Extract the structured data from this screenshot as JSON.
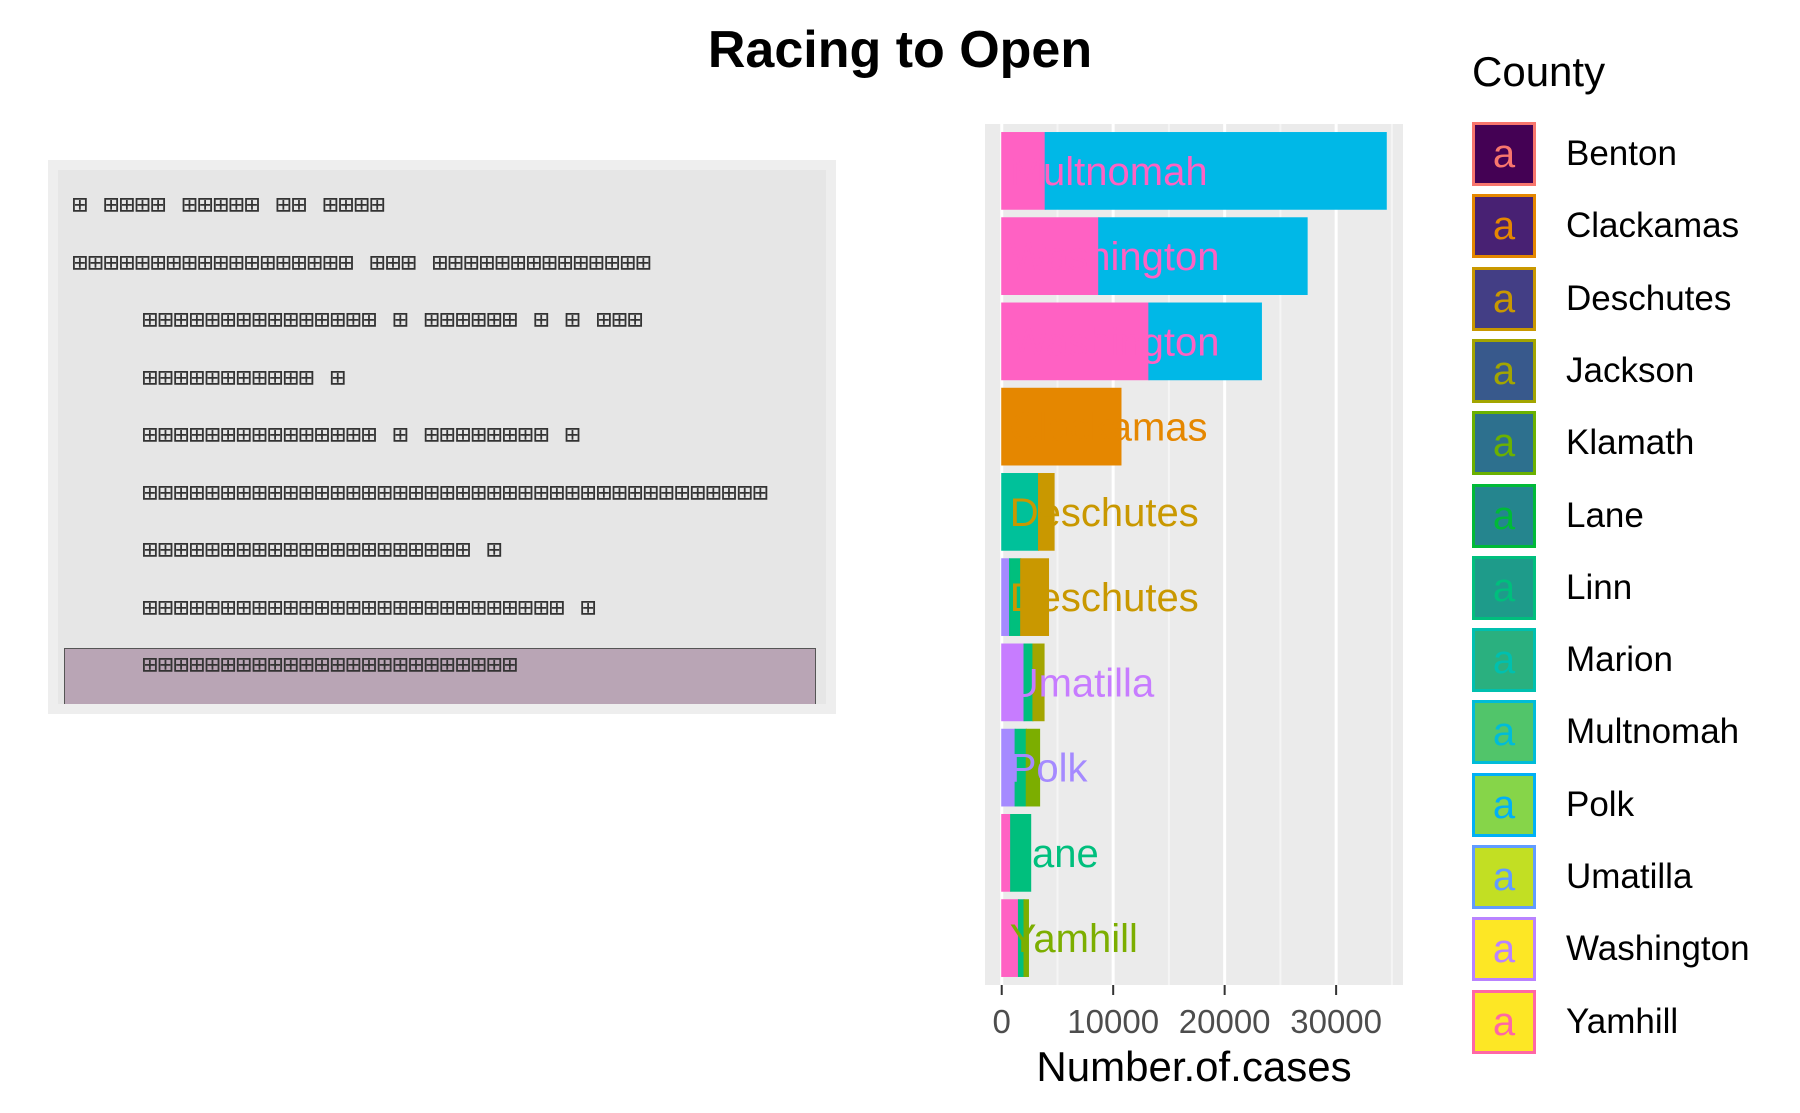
{
  "title": "Racing to Open",
  "code_panel": {
    "lines": [
      {
        "text": "⊞ ⊞⊞⊞⊞ ⊞⊞⊞⊞⊞ ⊞⊞ ⊞⊞⊞⊞",
        "indent": 0
      },
      {
        "text": "⊞⊞⊞⊞⊞⊞⊞⊞⊞⊞⊞⊞⊞⊞⊞⊞⊞⊞ ⊞⊞⊞ ⊞⊞⊞⊞⊞⊞⊞⊞⊞⊞⊞⊞⊞⊞",
        "indent": 0
      },
      {
        "text": "⊞⊞⊞⊞⊞⊞⊞⊞⊞⊞⊞⊞⊞⊞⊞ ⊞ ⊞⊞⊞⊞⊞⊞ ⊞ ⊞ ⊞⊞⊞",
        "indent": 1
      },
      {
        "text": "⊞⊞⊞⊞⊞⊞⊞⊞⊞⊞⊞ ⊞",
        "indent": 1
      },
      {
        "text": "⊞⊞⊞⊞⊞⊞⊞⊞⊞⊞⊞⊞⊞⊞⊞ ⊞ ⊞⊞⊞⊞⊞⊞⊞⊞ ⊞",
        "indent": 1
      },
      {
        "text": "⊞⊞⊞⊞⊞⊞⊞⊞⊞⊞⊞⊞⊞⊞⊞⊞⊞⊞⊞⊞⊞⊞⊞⊞⊞⊞⊞⊞⊞⊞⊞⊞⊞⊞⊞⊞⊞⊞⊞⊞",
        "indent": 1
      },
      {
        "text": "⊞⊞⊞⊞⊞⊞⊞⊞⊞⊞⊞⊞⊞⊞⊞⊞⊞⊞⊞⊞⊞ ⊞",
        "indent": 1
      },
      {
        "text": "⊞⊞⊞⊞⊞⊞⊞⊞⊞⊞⊞⊞⊞⊞⊞⊞⊞⊞⊞⊞⊞⊞⊞⊞⊞⊞⊞ ⊞",
        "indent": 1
      },
      {
        "text": "⊞⊞⊞⊞⊞⊞⊞⊞⊞⊞⊞⊞⊞⊞⊞⊞⊞⊞⊞⊞⊞⊞⊞⊞",
        "indent": 1
      }
    ]
  },
  "chart_data": {
    "type": "bar",
    "orientation": "horizontal",
    "title": "Racing to Open",
    "xlabel": "Number.of.cases",
    "ylabel": "",
    "xlim": [
      -1500,
      36000
    ],
    "x_ticks": [
      0,
      10000,
      20000,
      30000
    ],
    "x_tick_labels": [
      "0",
      "10000",
      "20000",
      "30000"
    ],
    "grid": true,
    "legend_title": "County",
    "legend_position": "right",
    "categories": [
      "Benton",
      "Clackamas",
      "Deschutes",
      "Jackson",
      "Klamath",
      "Lane",
      "Linn",
      "Marion",
      "Multnomah",
      "Polk",
      "Umatilla",
      "Washington",
      "Yamhill"
    ],
    "colors": [
      "#440154",
      "#481a6c",
      "#472f7d",
      "#414487",
      "#39568c",
      "#31688e",
      "#2a788e",
      "#23888e",
      "#1f988b",
      "#22a884",
      "#35b779",
      "#54c568",
      "#fde725"
    ],
    "outline_colors": [
      "#f8766d",
      "#e58700",
      "#c99800",
      "#a3a500",
      "#6bb100",
      "#00ba38",
      "#00bf7d",
      "#00c0af",
      "#00bcd8",
      "#00b0f6",
      "#619cff",
      "#b983ff",
      "#e76bf3"
    ],
    "legend_fill_colors": [
      "#440154",
      "#482173",
      "#433e85",
      "#38598c",
      "#2d708e",
      "#25858e",
      "#1e9b8a",
      "#2ab07f",
      "#51c56a",
      "#86d549",
      "#c2df23",
      "#fde725",
      "#fde725"
    ],
    "legend_outline_colors": [
      "#f8766d",
      "#e58700",
      "#c99800",
      "#a3a500",
      "#6bb100",
      "#00ba38",
      "#00bf7d",
      "#00c0af",
      "#00bcd8",
      "#00b0f6",
      "#619cff",
      "#b983ff",
      "#ff67a4"
    ],
    "legend_letter": "a",
    "bars": [
      {
        "max": 34500,
        "label": "Multnomah",
        "label_color": "#ff61c3",
        "segments": [
          {
            "to": 3900,
            "color": "#ff61c3"
          },
          {
            "to": 34500,
            "color": "#00b8e7"
          }
        ]
      },
      {
        "max": 27400,
        "label": "Washington",
        "label_color": "#ff61c3",
        "segments": [
          {
            "to": 8700,
            "color": "#ff61c3"
          },
          {
            "to": 27400,
            "color": "#00b8e7"
          }
        ]
      },
      {
        "max": 23300,
        "label": "Washington",
        "label_color": "#ff61c3",
        "segments": [
          {
            "to": 13200,
            "color": "#ff61c3"
          },
          {
            "to": 23300,
            "color": "#00b8e7"
          }
        ]
      },
      {
        "max": 10700,
        "label": "Clackamas",
        "label_color": "#e58700",
        "segments": [
          {
            "to": 10700,
            "color": "#e58700"
          }
        ]
      },
      {
        "max": 4700,
        "label": "Deschutes",
        "label_color": "#c99800",
        "segments": [
          {
            "to": 3300,
            "color": "#00c19a"
          },
          {
            "to": 4700,
            "color": "#c99800"
          }
        ]
      },
      {
        "max": 4200,
        "label": "Deschutes",
        "label_color": "#c99800",
        "segments": [
          {
            "to": 700,
            "color": "#a58aff"
          },
          {
            "to": 1700,
            "color": "#00bf7d"
          },
          {
            "to": 4200,
            "color": "#c99800"
          }
        ]
      },
      {
        "max": 3800,
        "label": "Umatilla",
        "label_color": "#c77cff",
        "segments": [
          {
            "to": 2000,
            "color": "#c77cff"
          },
          {
            "to": 2800,
            "color": "#00bf7d"
          },
          {
            "to": 3800,
            "color": "#a3a500"
          }
        ]
      },
      {
        "max": 3400,
        "label": "Polk",
        "label_color": "#a58aff",
        "segments": [
          {
            "to": 1200,
            "color": "#a58aff"
          },
          {
            "to": 2200,
            "color": "#00bf7d"
          },
          {
            "to": 3400,
            "color": "#7cae00"
          }
        ]
      },
      {
        "max": 2600,
        "label": "Lane",
        "label_color": "#00bf7d",
        "segments": [
          {
            "to": 800,
            "color": "#ff61c3"
          },
          {
            "to": 2600,
            "color": "#00bf7d"
          }
        ]
      },
      {
        "max": 2400,
        "label": "Yamhill",
        "label_color": "#7cae00",
        "segments": [
          {
            "to": 1500,
            "color": "#ff61c3"
          },
          {
            "to": 2000,
            "color": "#00bf7d"
          },
          {
            "to": 2400,
            "color": "#7cae00"
          }
        ]
      }
    ]
  }
}
